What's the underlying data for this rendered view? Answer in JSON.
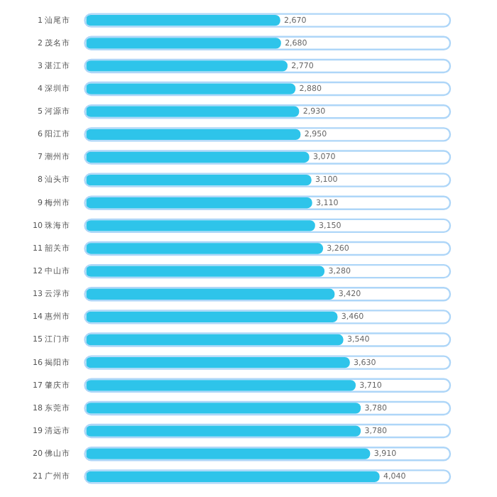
{
  "chart_data": {
    "type": "bar",
    "orientation": "horizontal",
    "categories": [
      "1 汕尾市",
      "2 茂名市",
      "3 湛江市",
      "4 深圳市",
      "5 河源市",
      "6 阳江市",
      "7 潮州市",
      "8 汕头市",
      "9 梅州市",
      "10 珠海市",
      "11 韶关市",
      "12 中山市",
      "13 云浮市",
      "14 惠州市",
      "15 江门市",
      "16 揭阳市",
      "17 肇庆市",
      "18 东莞市",
      "19 清远市",
      "20 佛山市",
      "21 广州市"
    ],
    "values": [
      2670,
      2680,
      2770,
      2880,
      2930,
      2950,
      3070,
      3100,
      3110,
      3150,
      3260,
      3280,
      3420,
      3460,
      3540,
      3630,
      3710,
      3780,
      3780,
      3910,
      4040
    ],
    "value_labels": [
      "2,670",
      "2,680",
      "2,770",
      "2,880",
      "2,930",
      "2,950",
      "3,070",
      "3,100",
      "3,110",
      "3,150",
      "3,260",
      "3,280",
      "3,420",
      "3,460",
      "3,540",
      "3,630",
      "3,710",
      "3,780",
      "3,780",
      "3,910",
      "4,040"
    ],
    "color": "#2ec4ea",
    "xlim": [
      0,
      5000
    ],
    "tick_labels": "y"
  }
}
